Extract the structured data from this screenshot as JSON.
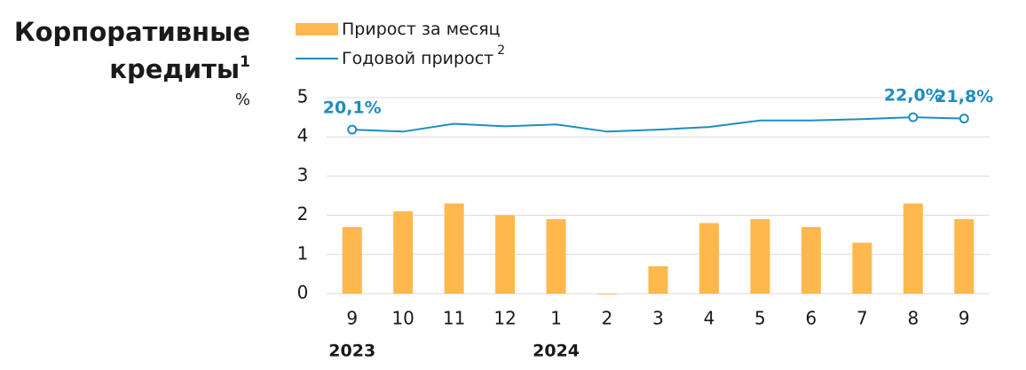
{
  "chart_data": {
    "type": "bar-line",
    "title": "Корпоративные кредиты",
    "title_note": "1",
    "unit": "%",
    "categories": [
      "9",
      "10",
      "11",
      "12",
      "1",
      "2",
      "3",
      "4",
      "5",
      "6",
      "7",
      "8",
      "9"
    ],
    "x_groups": [
      {
        "label": "2023",
        "start": 0
      },
      {
        "label": "2024",
        "start": 4
      }
    ],
    "series": [
      {
        "name": "Прирост за месяц",
        "color": "#ffb84d",
        "type": "bar",
        "values": [
          1.7,
          2.1,
          2.3,
          2.0,
          1.9,
          0.0,
          0.7,
          1.8,
          1.9,
          1.7,
          1.3,
          2.3,
          1.9
        ]
      },
      {
        "name": "Годовой прирост",
        "note": "2",
        "color": "#1f8dbf",
        "type": "line",
        "axis": "y2",
        "values": [
          20.1,
          19.8,
          21.0,
          20.6,
          20.9,
          19.8,
          20.1,
          20.5,
          21.5,
          21.5,
          21.7,
          22.0,
          21.8
        ],
        "value_labels": [
          "20,1%",
          null,
          null,
          null,
          null,
          null,
          null,
          null,
          null,
          null,
          null,
          "22,0%",
          "21,8%"
        ]
      }
    ],
    "ylim": [
      0,
      5
    ],
    "yticks": [
      0,
      1,
      2,
      3,
      4,
      5
    ],
    "y2lim": [
      -5,
      25
    ],
    "grid": true
  }
}
